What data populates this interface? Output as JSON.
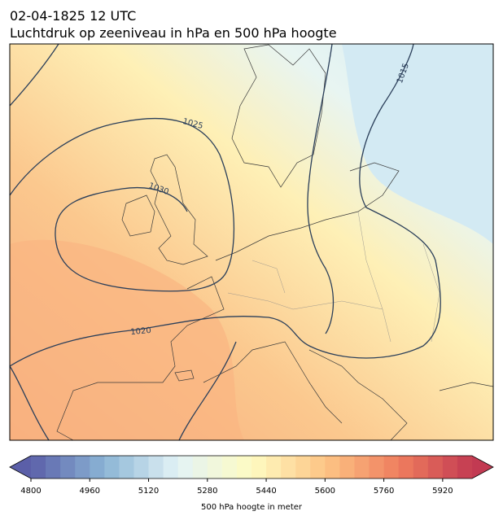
{
  "header": {
    "title": "02-04-1825 12 UTC",
    "subtitle": "Luchtdruk op zeeniveau in hPa en 500 hPa hoogte"
  },
  "map": {
    "isobar_labels": [
      1025,
      1030,
      1020,
      1015
    ]
  },
  "colorbar": {
    "label": "500 hPa hoogte in meter",
    "range": [
      4800,
      6000
    ],
    "step": 40,
    "ticks": [
      4800,
      4960,
      5120,
      5280,
      5440,
      5600,
      5760,
      5920
    ],
    "colormap": [
      "#5b5fa8",
      "#8bb5d5",
      "#e3f3f6",
      "#fefbc2",
      "#fdc585",
      "#ef7e5e",
      "#c23a52"
    ]
  }
}
